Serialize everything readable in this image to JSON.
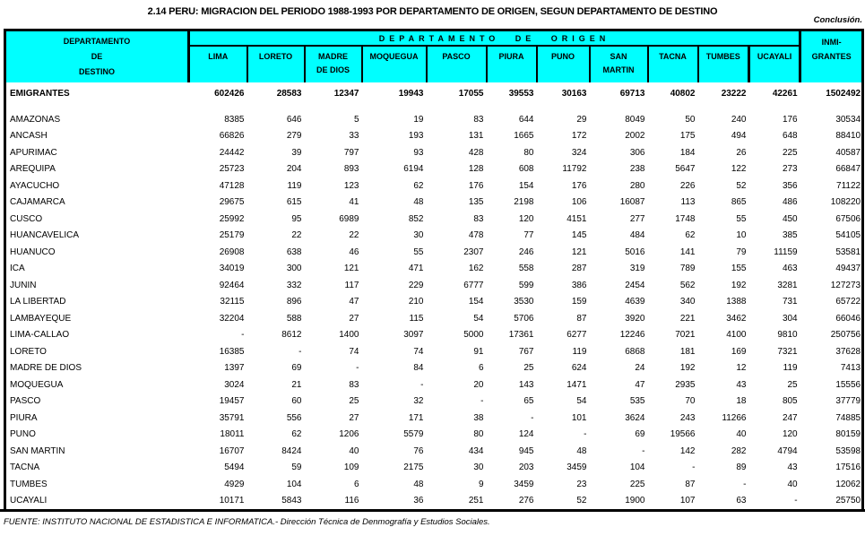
{
  "title": "2.14  PERU: MIGRACION DEL PERIODO 1988-1993 POR DEPARTAMENTO DE ORIGEN, SEGUN DEPARTAMENTO DE DESTINO",
  "note_top_right": "Conclusión.",
  "colors": {
    "header_fill": "#00FFFF",
    "border": "#000000",
    "background": "#FFFFFF"
  },
  "table": {
    "destino_header": "DEPARTAMENTO\nDE\nDESTINO",
    "origen_group_header": "DEPARTAMENTO DE ORIGEN",
    "origin_columns": [
      "LIMA",
      "LORETO",
      "MADRE\nDE DIOS",
      "MOQUEGUA",
      "PASCO",
      "PIURA",
      "PUNO",
      "SAN\nMARTIN",
      "TACNA",
      "TUMBES",
      "UCAYALI"
    ],
    "inmigrantes_header": "INMI-\nGRANTES",
    "totals_row": {
      "label": "EMIGRANTES",
      "values": [
        "602426",
        "28583",
        "12347",
        "19943",
        "17055",
        "39553",
        "30163",
        "69713",
        "40802",
        "23222",
        "42261"
      ],
      "total": "1502492"
    },
    "rows": [
      {
        "label": "AMAZONAS",
        "values": [
          "8385",
          "646",
          "5",
          "19",
          "83",
          "644",
          "29",
          "8049",
          "50",
          "240",
          "176"
        ],
        "total": "30534"
      },
      {
        "label": "ANCASH",
        "values": [
          "66826",
          "279",
          "33",
          "193",
          "131",
          "1665",
          "172",
          "2002",
          "175",
          "494",
          "648"
        ],
        "total": "88410"
      },
      {
        "label": "APURIMAC",
        "values": [
          "24442",
          "39",
          "797",
          "93",
          "428",
          "80",
          "324",
          "306",
          "184",
          "26",
          "225"
        ],
        "total": "40587"
      },
      {
        "label": "AREQUIPA",
        "values": [
          "25723",
          "204",
          "893",
          "6194",
          "128",
          "608",
          "11792",
          "238",
          "5647",
          "122",
          "273"
        ],
        "total": "66847"
      },
      {
        "label": "AYACUCHO",
        "values": [
          "47128",
          "119",
          "123",
          "62",
          "176",
          "154",
          "176",
          "280",
          "226",
          "52",
          "356"
        ],
        "total": "71122"
      },
      {
        "label": "CAJAMARCA",
        "values": [
          "29675",
          "615",
          "41",
          "48",
          "135",
          "2198",
          "106",
          "16087",
          "113",
          "865",
          "486"
        ],
        "total": "108220"
      },
      {
        "label": "CUSCO",
        "values": [
          "25992",
          "95",
          "6989",
          "852",
          "83",
          "120",
          "4151",
          "277",
          "1748",
          "55",
          "450"
        ],
        "total": "67506"
      },
      {
        "label": "HUANCAVELICA",
        "values": [
          "25179",
          "22",
          "22",
          "30",
          "478",
          "77",
          "145",
          "484",
          "62",
          "10",
          "385"
        ],
        "total": "54105"
      },
      {
        "label": "HUANUCO",
        "values": [
          "26908",
          "638",
          "46",
          "55",
          "2307",
          "246",
          "121",
          "5016",
          "141",
          "79",
          "11159"
        ],
        "total": "53581"
      },
      {
        "label": "ICA",
        "values": [
          "34019",
          "300",
          "121",
          "471",
          "162",
          "558",
          "287",
          "319",
          "789",
          "155",
          "463"
        ],
        "total": "49437"
      },
      {
        "label": "JUNIN",
        "values": [
          "92464",
          "332",
          "117",
          "229",
          "6777",
          "599",
          "386",
          "2454",
          "562",
          "192",
          "3281"
        ],
        "total": "127273"
      },
      {
        "label": "LA LIBERTAD",
        "values": [
          "32115",
          "896",
          "47",
          "210",
          "154",
          "3530",
          "159",
          "4639",
          "340",
          "1388",
          "731"
        ],
        "total": "65722"
      },
      {
        "label": "LAMBAYEQUE",
        "values": [
          "32204",
          "588",
          "27",
          "115",
          "54",
          "5706",
          "87",
          "3920",
          "221",
          "3462",
          "304"
        ],
        "total": "66046"
      },
      {
        "label": "LIMA-CALLAO",
        "values": [
          "-",
          "8612",
          "1400",
          "3097",
          "5000",
          "17361",
          "6277",
          "12246",
          "7021",
          "4100",
          "9810"
        ],
        "total": "250756"
      },
      {
        "label": "LORETO",
        "values": [
          "16385",
          "-",
          "74",
          "74",
          "91",
          "767",
          "119",
          "6868",
          "181",
          "169",
          "7321"
        ],
        "total": "37628"
      },
      {
        "label": "MADRE DE DIOS",
        "values": [
          "1397",
          "69",
          "-",
          "84",
          "6",
          "25",
          "624",
          "24",
          "192",
          "12",
          "119"
        ],
        "total": "7413"
      },
      {
        "label": "MOQUEGUA",
        "values": [
          "3024",
          "21",
          "83",
          "-",
          "20",
          "143",
          "1471",
          "47",
          "2935",
          "43",
          "25"
        ],
        "total": "15556"
      },
      {
        "label": "PASCO",
        "values": [
          "19457",
          "60",
          "25",
          "32",
          "-",
          "65",
          "54",
          "535",
          "70",
          "18",
          "805"
        ],
        "total": "37779"
      },
      {
        "label": "PIURA",
        "values": [
          "35791",
          "556",
          "27",
          "171",
          "38",
          "-",
          "101",
          "3624",
          "243",
          "11266",
          "247"
        ],
        "total": "74885"
      },
      {
        "label": "PUNO",
        "values": [
          "18011",
          "62",
          "1206",
          "5579",
          "80",
          "124",
          "-",
          "69",
          "19566",
          "40",
          "120"
        ],
        "total": "80159"
      },
      {
        "label": "SAN MARTIN",
        "values": [
          "16707",
          "8424",
          "40",
          "76",
          "434",
          "945",
          "48",
          "-",
          "142",
          "282",
          "4794"
        ],
        "total": "53598"
      },
      {
        "label": "TACNA",
        "values": [
          "5494",
          "59",
          "109",
          "2175",
          "30",
          "203",
          "3459",
          "104",
          "-",
          "89",
          "43"
        ],
        "total": "17516"
      },
      {
        "label": "TUMBES",
        "values": [
          "4929",
          "104",
          "6",
          "48",
          "9",
          "3459",
          "23",
          "225",
          "87",
          "-",
          "40"
        ],
        "total": "12062"
      },
      {
        "label": "UCAYALI",
        "values": [
          "10171",
          "5843",
          "116",
          "36",
          "251",
          "276",
          "52",
          "1900",
          "107",
          "63",
          "-"
        ],
        "total": "25750"
      }
    ]
  },
  "footer": {
    "source": "FUENTE: INSTITUTO NACIONAL DE ESTADISTICA E INFORMATICA.- Dirección Técnica de Denmografía y Estudios Sociales."
  }
}
